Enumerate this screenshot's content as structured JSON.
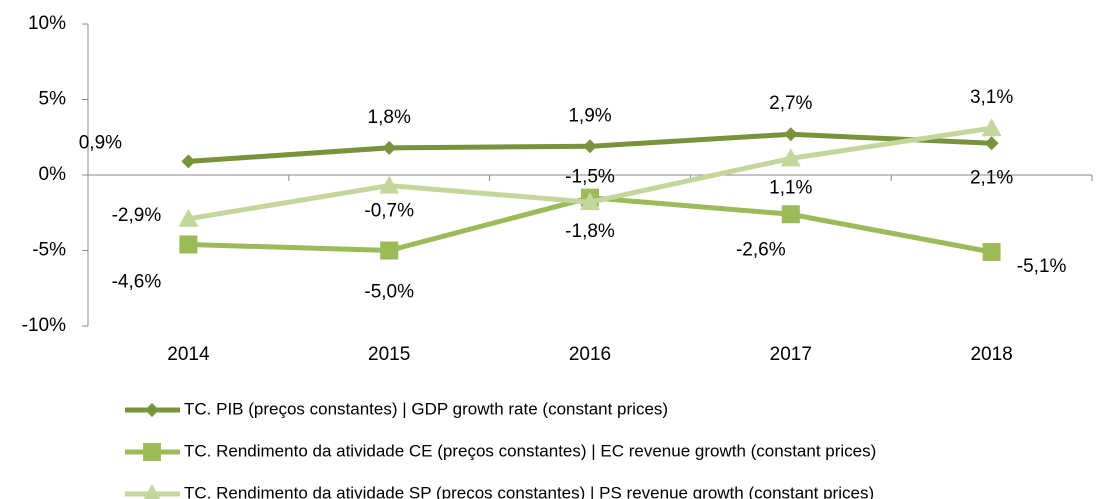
{
  "chart_data": {
    "type": "line",
    "categories": [
      "2014",
      "2015",
      "2016",
      "2017",
      "2018"
    ],
    "series": [
      {
        "name": "TC. PIB (preços constantes) | GDP growth rate (constant prices)",
        "color": "#77933c",
        "marker": "diamond",
        "values": [
          0.9,
          1.8,
          1.9,
          2.7,
          2.1
        ],
        "value_labels": [
          "0,9%",
          "1,8%",
          "1,9%",
          "2,7%",
          "2,1%"
        ]
      },
      {
        "name": "TC. Rendimento da atividade CE (preços constantes) | EC revenue growth (constant prices)",
        "color": "#9bbb59",
        "marker": "square",
        "values": [
          -4.6,
          -5.0,
          -1.5,
          -2.6,
          -5.1
        ],
        "value_labels": [
          "-4,6%",
          "-5,0%",
          "-1,5%",
          "-2,6%",
          "-5,1%"
        ]
      },
      {
        "name": "TC. Rendimento da atividade SP (preços constantes) | PS revenue growth (constant prices)",
        "color": "#c3d69b",
        "marker": "triangle",
        "values": [
          -2.9,
          -0.7,
          -1.8,
          1.1,
          3.1
        ],
        "value_labels": [
          "-2,9%",
          "-0,7%",
          "-1,8%",
          "1,1%",
          "3,1%"
        ]
      }
    ],
    "ylim": [
      -10,
      10
    ],
    "yticks": [
      {
        "value": -10,
        "label": "-10%"
      },
      {
        "value": -5,
        "label": "-5%"
      },
      {
        "value": 0,
        "label": "0%"
      },
      {
        "value": 5,
        "label": "5%"
      },
      {
        "value": 10,
        "label": "10%"
      }
    ],
    "legend": "bottom"
  }
}
